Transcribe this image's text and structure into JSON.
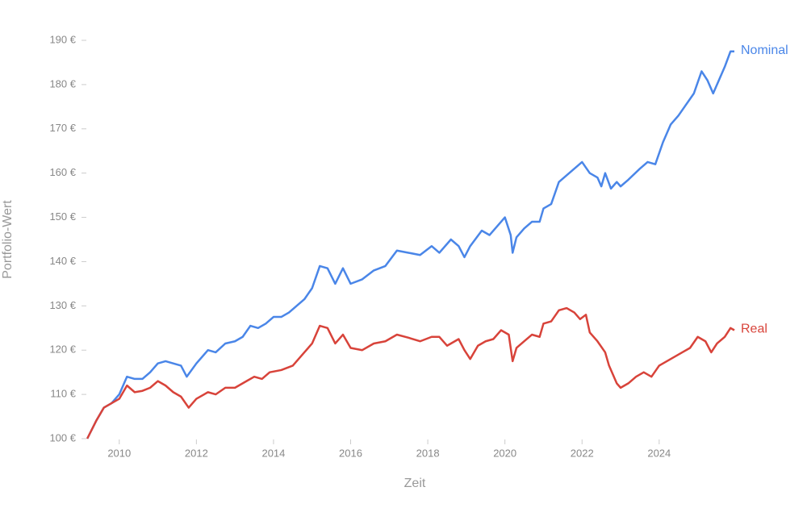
{
  "chart_data": {
    "type": "line",
    "x_label": "Zeit",
    "y_label": "Portfolio-Wert",
    "xlim": [
      2009,
      2025.95
    ],
    "ylim": [
      100,
      190
    ],
    "xticks": [
      2010,
      2012,
      2014,
      2016,
      2018,
      2020,
      2022,
      2024
    ],
    "yticks": [
      {
        "value": 100,
        "label": "100 €"
      },
      {
        "value": 110,
        "label": "110 €"
      },
      {
        "value": 120,
        "label": "120 €"
      },
      {
        "value": 130,
        "label": "130 €"
      },
      {
        "value": 140,
        "label": "140 €"
      },
      {
        "value": 150,
        "label": "150 €"
      },
      {
        "value": 160,
        "label": "160 €"
      },
      {
        "value": 170,
        "label": "170 €"
      },
      {
        "value": 180,
        "label": "180 €"
      },
      {
        "value": 190,
        "label": "190 €"
      }
    ],
    "grid": false,
    "series": [
      {
        "name": "Nominal",
        "color": "#4a86e8",
        "x": [
          2009.17,
          2009.4,
          2009.6,
          2009.8,
          2010.0,
          2010.2,
          2010.4,
          2010.6,
          2010.8,
          2011.0,
          2011.2,
          2011.4,
          2011.6,
          2011.75,
          2012.0,
          2012.3,
          2012.5,
          2012.75,
          2013.0,
          2013.2,
          2013.4,
          2013.6,
          2013.8,
          2014.0,
          2014.2,
          2014.4,
          2014.6,
          2014.8,
          2015.0,
          2015.2,
          2015.4,
          2015.6,
          2015.8,
          2016.0,
          2016.3,
          2016.6,
          2016.9,
          2017.2,
          2017.5,
          2017.8,
          2018.1,
          2018.3,
          2018.6,
          2018.8,
          2018.95,
          2019.1,
          2019.4,
          2019.6,
          2019.8,
          2020.0,
          2020.15,
          2020.2,
          2020.3,
          2020.5,
          2020.7,
          2020.9,
          2021.0,
          2021.2,
          2021.4,
          2021.6,
          2021.8,
          2022.0,
          2022.2,
          2022.4,
          2022.5,
          2022.6,
          2022.75,
          2022.9,
          2023.0,
          2023.2,
          2023.5,
          2023.7,
          2023.9,
          2024.1,
          2024.3,
          2024.5,
          2024.7,
          2024.9,
          2025.1,
          2025.25,
          2025.4,
          2025.55,
          2025.7,
          2025.85,
          2025.95
        ],
        "values": [
          100,
          104,
          107,
          108,
          110,
          114,
          113.5,
          113.5,
          115,
          117,
          117.5,
          117,
          116.5,
          114,
          117,
          120,
          119.5,
          121.5,
          122,
          123,
          125.5,
          125,
          126,
          127.5,
          127.5,
          128.5,
          130,
          131.5,
          134,
          139,
          138.5,
          135,
          138.5,
          135,
          136,
          138,
          139,
          142.5,
          142,
          141.5,
          143.5,
          142,
          145,
          143.5,
          141,
          143.5,
          147,
          146,
          148,
          150,
          146,
          142,
          145.5,
          147.5,
          149,
          149,
          152,
          153,
          158,
          159.5,
          161,
          162.5,
          160,
          159,
          157,
          160,
          156.5,
          158,
          157,
          158.5,
          161,
          162.5,
          162,
          167,
          171,
          173,
          175.5,
          178,
          183,
          181,
          178,
          181,
          184,
          187.5,
          187.5
        ]
      },
      {
        "name": "Real",
        "color": "#d8433a",
        "x": [
          2009.17,
          2009.4,
          2009.6,
          2009.8,
          2010.0,
          2010.2,
          2010.4,
          2010.6,
          2010.8,
          2011.0,
          2011.2,
          2011.4,
          2011.6,
          2011.8,
          2012.0,
          2012.3,
          2012.5,
          2012.75,
          2013.0,
          2013.3,
          2013.5,
          2013.7,
          2013.9,
          2014.2,
          2014.5,
          2014.8,
          2015.0,
          2015.2,
          2015.4,
          2015.6,
          2015.8,
          2016.0,
          2016.3,
          2016.6,
          2016.9,
          2017.2,
          2017.5,
          2017.8,
          2018.1,
          2018.3,
          2018.5,
          2018.8,
          2018.95,
          2019.1,
          2019.3,
          2019.5,
          2019.7,
          2019.9,
          2020.1,
          2020.2,
          2020.3,
          2020.5,
          2020.7,
          2020.9,
          2021.0,
          2021.2,
          2021.4,
          2021.6,
          2021.8,
          2021.95,
          2022.1,
          2022.2,
          2022.4,
          2022.6,
          2022.7,
          2022.9,
          2023.0,
          2023.2,
          2023.4,
          2023.6,
          2023.8,
          2024.0,
          2024.2,
          2024.4,
          2024.6,
          2024.8,
          2025.0,
          2025.2,
          2025.35,
          2025.5,
          2025.7,
          2025.85,
          2025.95
        ],
        "values": [
          100,
          104,
          107,
          108,
          109,
          112,
          110.5,
          110.8,
          111.5,
          113,
          112,
          110.5,
          109.5,
          107,
          109,
          110.5,
          110,
          111.5,
          111.5,
          113,
          114,
          113.5,
          115,
          115.5,
          116.5,
          119.5,
          121.5,
          125.5,
          125,
          121.5,
          123.5,
          120.5,
          120,
          121.5,
          122,
          123.5,
          122.8,
          122,
          123,
          123,
          121,
          122.5,
          120,
          118,
          121,
          122,
          122.5,
          124.5,
          123.5,
          117.5,
          120.5,
          122,
          123.5,
          123,
          126,
          126.5,
          129,
          129.5,
          128.5,
          127,
          128,
          124,
          122,
          119.5,
          116.5,
          112.5,
          111.5,
          112.5,
          114,
          115,
          114,
          116.5,
          117.5,
          118.5,
          119.5,
          120.5,
          123,
          122,
          119.5,
          121.5,
          123,
          125,
          124.5
        ]
      }
    ]
  }
}
